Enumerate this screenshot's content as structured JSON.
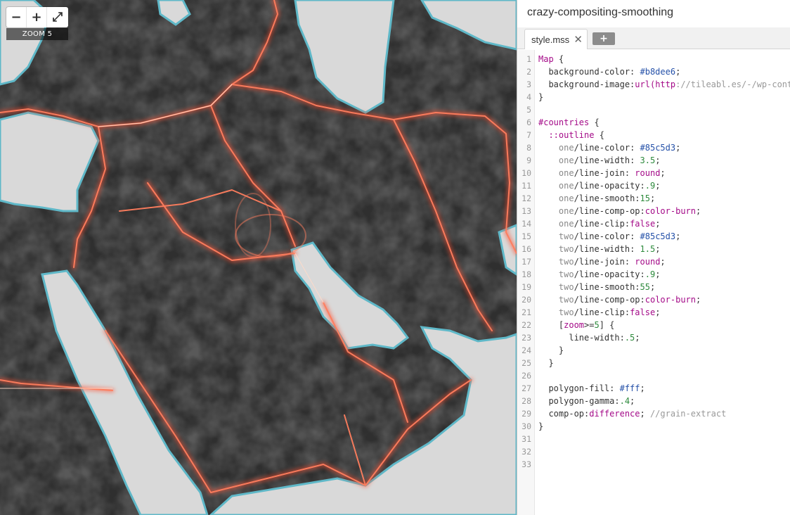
{
  "map": {
    "zoom_in_label": "+",
    "zoom_out_label": "−",
    "fullscreen_label": "⤢",
    "zoom_label": "ZOOM 5"
  },
  "editor": {
    "project_title": "crazy-compositing-smoothing",
    "tab_label": "style.mss",
    "tab_close_label": "✕",
    "add_tab_label": "+",
    "lines": [
      [
        {
          "c": "t-kw",
          "t": "Map"
        },
        {
          "t": " {"
        }
      ],
      [
        {
          "t": "  background-color: "
        },
        {
          "c": "t-col",
          "t": "#b8dee6"
        },
        {
          "t": ";"
        }
      ],
      [
        {
          "t": "  background-image:"
        },
        {
          "c": "t-kw",
          "t": "url("
        },
        {
          "c": "t-kw",
          "t": "http"
        },
        {
          "c": "t-url",
          "t": "://tileabl.es/-/wp-conter"
        }
      ],
      [
        {
          "t": "}"
        }
      ],
      [],
      [
        {
          "c": "t-id",
          "t": "#countries"
        },
        {
          "t": " {"
        }
      ],
      [
        {
          "t": "  "
        },
        {
          "c": "t-id",
          "t": "::outline"
        },
        {
          "t": " {"
        }
      ],
      [
        {
          "t": "    "
        },
        {
          "c": "t-inst",
          "t": "one"
        },
        {
          "t": "/line-color: "
        },
        {
          "c": "t-col",
          "t": "#85c5d3"
        },
        {
          "t": ";"
        }
      ],
      [
        {
          "t": "    "
        },
        {
          "c": "t-inst",
          "t": "one"
        },
        {
          "t": "/line-width: "
        },
        {
          "c": "t-num",
          "t": "3.5"
        },
        {
          "t": ";"
        }
      ],
      [
        {
          "t": "    "
        },
        {
          "c": "t-inst",
          "t": "one"
        },
        {
          "t": "/line-join: "
        },
        {
          "c": "t-kw",
          "t": "round"
        },
        {
          "t": ";"
        }
      ],
      [
        {
          "t": "    "
        },
        {
          "c": "t-inst",
          "t": "one"
        },
        {
          "t": "/line-opacity:"
        },
        {
          "c": "t-num",
          "t": ".9"
        },
        {
          "t": ";"
        }
      ],
      [
        {
          "t": "    "
        },
        {
          "c": "t-inst",
          "t": "one"
        },
        {
          "t": "/line-smooth:"
        },
        {
          "c": "t-num",
          "t": "15"
        },
        {
          "t": ";"
        }
      ],
      [
        {
          "t": "    "
        },
        {
          "c": "t-inst",
          "t": "one"
        },
        {
          "t": "/line-comp-op:"
        },
        {
          "c": "t-kw",
          "t": "color-burn"
        },
        {
          "t": ";"
        }
      ],
      [
        {
          "t": "    "
        },
        {
          "c": "t-inst",
          "t": "one"
        },
        {
          "t": "/line-clip:"
        },
        {
          "c": "t-kw",
          "t": "false"
        },
        {
          "t": ";"
        }
      ],
      [
        {
          "t": "    "
        },
        {
          "c": "t-inst",
          "t": "two"
        },
        {
          "t": "/line-color: "
        },
        {
          "c": "t-col",
          "t": "#85c5d3"
        },
        {
          "t": ";"
        }
      ],
      [
        {
          "t": "    "
        },
        {
          "c": "t-inst",
          "t": "two"
        },
        {
          "t": "/line-width: "
        },
        {
          "c": "t-num",
          "t": "1.5"
        },
        {
          "t": ";"
        }
      ],
      [
        {
          "t": "    "
        },
        {
          "c": "t-inst",
          "t": "two"
        },
        {
          "t": "/line-join: "
        },
        {
          "c": "t-kw",
          "t": "round"
        },
        {
          "t": ";"
        }
      ],
      [
        {
          "t": "    "
        },
        {
          "c": "t-inst",
          "t": "two"
        },
        {
          "t": "/line-opacity:"
        },
        {
          "c": "t-num",
          "t": ".9"
        },
        {
          "t": ";"
        }
      ],
      [
        {
          "t": "    "
        },
        {
          "c": "t-inst",
          "t": "two"
        },
        {
          "t": "/line-smooth:"
        },
        {
          "c": "t-num",
          "t": "55"
        },
        {
          "t": ";"
        }
      ],
      [
        {
          "t": "    "
        },
        {
          "c": "t-inst",
          "t": "two"
        },
        {
          "t": "/line-comp-op:"
        },
        {
          "c": "t-kw",
          "t": "color-burn"
        },
        {
          "t": ";"
        }
      ],
      [
        {
          "t": "    "
        },
        {
          "c": "t-inst",
          "t": "two"
        },
        {
          "t": "/line-clip:"
        },
        {
          "c": "t-kw",
          "t": "false"
        },
        {
          "t": ";"
        }
      ],
      [
        {
          "t": "    ["
        },
        {
          "c": "t-kw",
          "t": "zoom"
        },
        {
          "t": ">="
        },
        {
          "c": "t-num",
          "t": "5"
        },
        {
          "t": "] {"
        }
      ],
      [
        {
          "t": "      line-width:"
        },
        {
          "c": "t-num",
          "t": ".5"
        },
        {
          "t": ";"
        }
      ],
      [
        {
          "t": "    }"
        }
      ],
      [
        {
          "t": "  }"
        }
      ],
      [],
      [
        {
          "t": "  polygon-fill: "
        },
        {
          "c": "t-col",
          "t": "#fff"
        },
        {
          "t": ";"
        }
      ],
      [
        {
          "t": "  polygon-gamma:"
        },
        {
          "c": "t-num",
          "t": ".4"
        },
        {
          "t": ";"
        }
      ],
      [
        {
          "t": "  comp-op:"
        },
        {
          "c": "t-kw",
          "t": "difference"
        },
        {
          "t": "; "
        },
        {
          "c": "t-com",
          "t": "//grain-extract"
        }
      ],
      [
        {
          "t": "}"
        }
      ],
      [],
      [],
      []
    ]
  }
}
